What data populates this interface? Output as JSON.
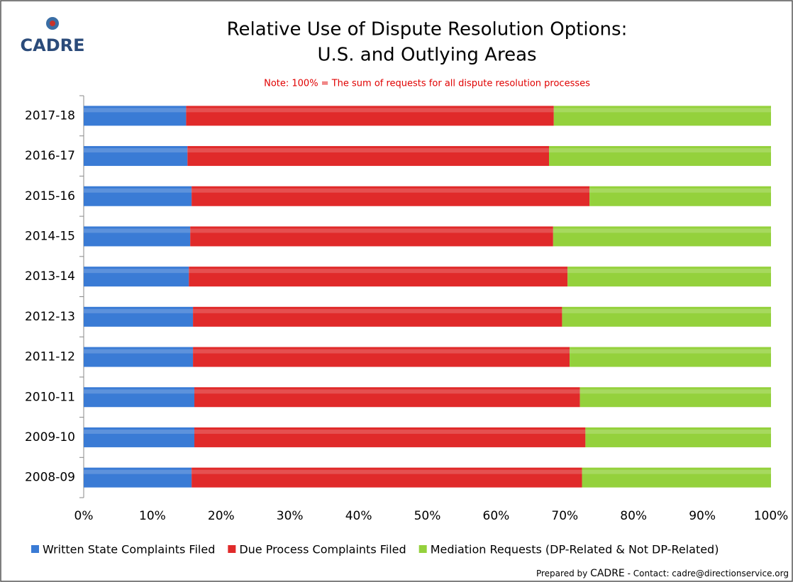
{
  "chart_data": {
    "type": "stacked-barh",
    "logo": "CADRE",
    "title": [
      "Relative Use of Dispute Resolution Options:",
      "U.S. and Outlying Areas"
    ],
    "subtitle": "Note:  100% = The sum of requests for all dispute resolution processes",
    "footer": {
      "prefix": "Prepared by",
      "brand": "CADRE",
      "contact": "- Contact: cadre@directionservice.org"
    },
    "categories": [
      "2017-18",
      "2016-17",
      "2015-16",
      "2014-15",
      "2013-14",
      "2012-13",
      "2011-12",
      "2010-11",
      "2009-10",
      "2008-09"
    ],
    "series": [
      {
        "name": "Written State Complaints Filed",
        "color": "#3a7bd5",
        "values": [
          14.9,
          15.1,
          15.7,
          15.5,
          15.3,
          15.9,
          15.9,
          16.1,
          16.1,
          15.7
        ]
      },
      {
        "name": "Due Process Complaints Filed",
        "color": "#e02a2a",
        "values": [
          53.5,
          52.6,
          57.9,
          52.8,
          55.1,
          53.7,
          54.8,
          56.1,
          56.9,
          56.8
        ]
      },
      {
        "name": "Mediation Requests (DP-Related & Not DP-Related)",
        "color": "#94d13c",
        "values": [
          31.6,
          32.3,
          26.4,
          31.7,
          29.6,
          30.4,
          29.3,
          27.8,
          27.0,
          27.5
        ]
      }
    ],
    "xlim": [
      0,
      100
    ],
    "xticks": [
      {
        "value": 0,
        "label": "0%"
      },
      {
        "value": 10,
        "label": "10%"
      },
      {
        "value": 20,
        "label": "20%"
      },
      {
        "value": 30,
        "label": "30%"
      },
      {
        "value": 40,
        "label": "40%"
      },
      {
        "value": 50,
        "label": "50%"
      },
      {
        "value": 60,
        "label": "60%"
      },
      {
        "value": 70,
        "label": "70%"
      },
      {
        "value": 80,
        "label": "80%"
      },
      {
        "value": 90,
        "label": "90%"
      },
      {
        "value": 100,
        "label": "100%"
      }
    ],
    "grid": false,
    "legend": "bottom"
  }
}
